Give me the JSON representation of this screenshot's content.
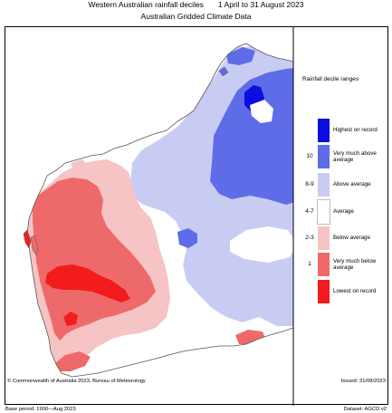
{
  "title": {
    "line1_left": "Western Australian rainfall deciles",
    "line1_right": "1 April to 31 August 2023",
    "line2": "Australian Gridded Climate Data"
  },
  "legend": {
    "title": "Rainfall decile ranges",
    "items": [
      {
        "decile": "",
        "label": "Highest on record",
        "color": "#0d0de0"
      },
      {
        "decile": "10",
        "label": "Very much above average",
        "color": "#5f6ce8"
      },
      {
        "decile": "8-9",
        "label": "Above average",
        "color": "#c9ccf2"
      },
      {
        "decile": "4-7",
        "label": "Average",
        "color": "#ffffff"
      },
      {
        "decile": "2-3",
        "label": "Below average",
        "color": "#f6c4c4"
      },
      {
        "decile": "1",
        "label": "Very much below average",
        "color": "#ee6a6a"
      },
      {
        "decile": "",
        "label": "Lowest on record",
        "color": "#f21c1c"
      }
    ]
  },
  "footer": {
    "copyright": "© Commonwealth of Australia 2023, Bureau of Meteorology",
    "base_period": "Base period: 1900—Aug 2023",
    "dataset": "Dataset: AGCD v2",
    "issued": "Issued: 31/08/2023"
  }
}
